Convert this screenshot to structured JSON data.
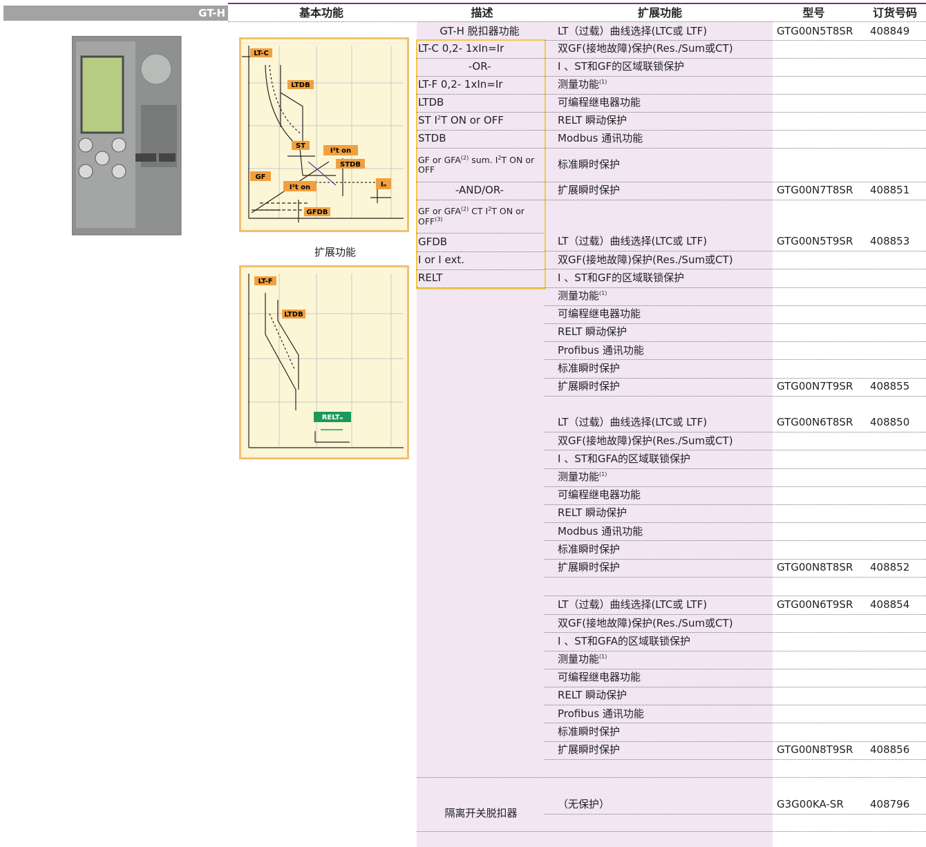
{
  "header": {
    "label": "GT-H",
    "columns": [
      "基本功能",
      "描述",
      "扩展功能",
      "型号",
      "订货号码"
    ]
  },
  "diagram_1": {
    "labels": [
      "LT-C",
      "LTDB",
      "ST",
      "I²t on",
      "STDB",
      "GF",
      "I²t on",
      "GFDB",
      "Iₙ"
    ]
  },
  "diagram_caption": "扩展功能",
  "diagram_2": {
    "labels": [
      "LT-F",
      "LTDB",
      "RELTₙ"
    ]
  },
  "description": [
    "GT-H 脱扣器功能",
    "LT-C 0,2- 1xIn=Ir",
    "-OR-",
    "LT-F 0,2- 1xIn=Ir",
    "LTDB",
    [
      "ST I",
      {
        "sup": "2"
      },
      "T ON or OFF"
    ],
    "STDB",
    [
      "GF or GFA",
      {
        "sup": "(2)"
      },
      " sum. I",
      {
        "sup": "2"
      },
      "T ON or OFF"
    ],
    "-AND/OR-",
    [
      "GF or GFA",
      {
        "sup": "(2)"
      },
      " CT I",
      {
        "sup": "2"
      },
      "T ON or OFF",
      {
        "sup": "(3)"
      }
    ],
    "GFDB",
    "I or I ext.",
    "RELT"
  ],
  "groups": [
    {
      "features": [
        "LT（过载）曲线选择(LTC或 LTF)",
        "双GF(接地故障)保护(Res./Sum或CT)",
        "I 、ST和GF的区域联锁保护",
        [
          "测量功能",
          {
            "sup": "(1)"
          }
        ],
        "可编程继电器功能",
        "RELT 瞬动保护",
        "Modbus 通讯功能",
        "标准瞬时保护",
        "扩展瞬时保护"
      ],
      "models": [
        {
          "model": "GTG00N5T8SR",
          "code": "408849"
        },
        {
          "model": "GTG00N7T8SR",
          "code": "408851"
        }
      ]
    },
    {
      "features": [
        "LT（过载）曲线选择(LTC或 LTF)",
        "双GF(接地故障)保护(Res./Sum或CT)",
        "I 、ST和GF的区域联锁保护",
        [
          "测量功能",
          {
            "sup": "(1)"
          }
        ],
        "可编程继电器功能",
        "RELT 瞬动保护",
        "Profibus 通讯功能",
        "标准瞬时保护",
        "扩展瞬时保护"
      ],
      "models": [
        {
          "model": "GTG00N5T9SR",
          "code": "408853"
        },
        {
          "model": "GTG00N7T9SR",
          "code": "408855"
        }
      ]
    },
    {
      "features": [
        "LT（过载）曲线选择(LTC或 LTF)",
        "双GF(接地故障)保护(Res./Sum或CT)",
        "I 、ST和GFA的区域联锁保护",
        [
          "测量功能",
          {
            "sup": "(1)"
          }
        ],
        "可编程继电器功能",
        "RELT 瞬动保护",
        "Modbus 通讯功能",
        "标准瞬时保护",
        "扩展瞬时保护"
      ],
      "models": [
        {
          "model": "GTG00N6T8SR",
          "code": "408850"
        },
        {
          "model": "GTG00N8T8SR",
          "code": "408852"
        }
      ]
    },
    {
      "features": [
        "LT（过载）曲线选择(LTC或 LTF)",
        "双GF(接地故障)保护(Res./Sum或CT)",
        "I 、ST和GFA的区域联锁保护",
        [
          "测量功能",
          {
            "sup": "(1)"
          }
        ],
        "可编程继电器功能",
        "RELT 瞬动保护",
        "Profibus 通讯功能",
        "标准瞬时保护",
        "扩展瞬时保护"
      ],
      "models": [
        {
          "model": "GTG00N6T9SR",
          "code": "408854"
        },
        {
          "model": "GTG00N8T9SR",
          "code": "408856"
        }
      ]
    }
  ],
  "isolator": {
    "description": "隔离开关脱扣器",
    "feature": "（无保护）",
    "model": "G3G00KA-SR",
    "code": "408796"
  }
}
